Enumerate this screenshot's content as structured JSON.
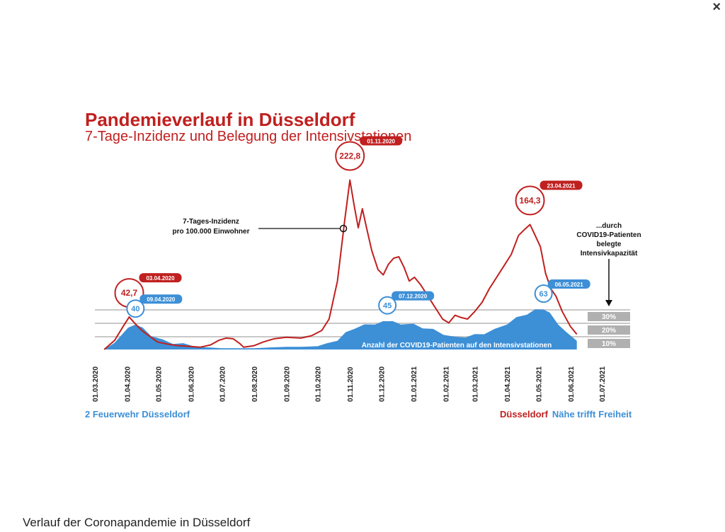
{
  "window": {
    "close_label": "×"
  },
  "caption": "Verlauf der Coronapandemie in Düsseldorf",
  "footer": {
    "left": "2 Feuerwehr Düsseldorf",
    "right_1": "Düsseldorf",
    "right_2": "Nähe trifft",
    "right_3": "Freiheit"
  },
  "colors": {
    "incidence": "#c0201f",
    "icu": "#3d8fd6",
    "band": "#b0b0b0"
  },
  "chart_data": {
    "type": "line",
    "title": "Pandemieverlauf in Düsseldorf",
    "subtitle": "7-Tage-Inzidenz und Belegung der Intensivstationen",
    "x_ticks": [
      "01.03.2020",
      "01.04.2020",
      "01.05.2020",
      "01.06.2020",
      "01.07.2020",
      "01.08.2020",
      "01.09.2020",
      "01.10.2020",
      "01.11.2020",
      "01.12.2020",
      "01.01.2021",
      "01.02.2021",
      "01.03.2021",
      "01.04.2021",
      "01.05.2021",
      "01.06.2021",
      "01.07.2021"
    ],
    "series": [
      {
        "name": "7-Tages-Inzidenz pro 100.000 Einwohner",
        "kind": "line",
        "points": [
          [
            "2020-03-10",
            0
          ],
          [
            "2020-03-20",
            12
          ],
          [
            "2020-03-28",
            30
          ],
          [
            "2020-04-03",
            42.7
          ],
          [
            "2020-04-08",
            35
          ],
          [
            "2020-04-15",
            25
          ],
          [
            "2020-04-22",
            18
          ],
          [
            "2020-04-30",
            10
          ],
          [
            "2020-05-10",
            7
          ],
          [
            "2020-05-20",
            5
          ],
          [
            "2020-06-01",
            4
          ],
          [
            "2020-06-10",
            3
          ],
          [
            "2020-06-20",
            6
          ],
          [
            "2020-06-28",
            12
          ],
          [
            "2020-07-05",
            15
          ],
          [
            "2020-07-12",
            14
          ],
          [
            "2020-07-18",
            8
          ],
          [
            "2020-07-22",
            3
          ],
          [
            "2020-08-01",
            5
          ],
          [
            "2020-08-10",
            10
          ],
          [
            "2020-08-20",
            14
          ],
          [
            "2020-09-01",
            16
          ],
          [
            "2020-09-15",
            15
          ],
          [
            "2020-09-25",
            18
          ],
          [
            "2020-10-05",
            25
          ],
          [
            "2020-10-12",
            40
          ],
          [
            "2020-10-20",
            90
          ],
          [
            "2020-10-27",
            170
          ],
          [
            "2020-11-01",
            222.8
          ],
          [
            "2020-11-05",
            190
          ],
          [
            "2020-11-09",
            160
          ],
          [
            "2020-11-13",
            185
          ],
          [
            "2020-11-17",
            160
          ],
          [
            "2020-11-22",
            130
          ],
          [
            "2020-11-28",
            105
          ],
          [
            "2020-12-03",
            98
          ],
          [
            "2020-12-08",
            112
          ],
          [
            "2020-12-13",
            120
          ],
          [
            "2020-12-18",
            122
          ],
          [
            "2020-12-23",
            108
          ],
          [
            "2020-12-28",
            90
          ],
          [
            "2021-01-02",
            95
          ],
          [
            "2021-01-08",
            85
          ],
          [
            "2021-01-15",
            70
          ],
          [
            "2021-01-22",
            55
          ],
          [
            "2021-01-29",
            40
          ],
          [
            "2021-02-04",
            35
          ],
          [
            "2021-02-10",
            45
          ],
          [
            "2021-02-16",
            42
          ],
          [
            "2021-02-22",
            40
          ],
          [
            "2021-03-01",
            50
          ],
          [
            "2021-03-08",
            62
          ],
          [
            "2021-03-15",
            80
          ],
          [
            "2021-03-22",
            95
          ],
          [
            "2021-03-29",
            110
          ],
          [
            "2021-04-05",
            125
          ],
          [
            "2021-04-12",
            150
          ],
          [
            "2021-04-18",
            158
          ],
          [
            "2021-04-23",
            164.3
          ],
          [
            "2021-04-28",
            150
          ],
          [
            "2021-05-03",
            135
          ],
          [
            "2021-05-08",
            100
          ],
          [
            "2021-05-13",
            80
          ],
          [
            "2021-05-18",
            70
          ],
          [
            "2021-05-24",
            50
          ],
          [
            "2021-06-01",
            30
          ],
          [
            "2021-06-07",
            20
          ]
        ]
      },
      {
        "name": "Anzahl der COVID19-Patienten auf den Intensivstationen",
        "kind": "area",
        "points": [
          [
            "2020-03-10",
            0
          ],
          [
            "2020-03-20",
            12
          ],
          [
            "2020-04-02",
            32
          ],
          [
            "2020-04-09",
            40
          ],
          [
            "2020-04-16",
            32
          ],
          [
            "2020-04-24",
            22
          ],
          [
            "2020-05-05",
            14
          ],
          [
            "2020-05-15",
            10
          ],
          [
            "2020-05-25",
            8
          ],
          [
            "2020-06-05",
            6
          ],
          [
            "2020-06-20",
            3
          ],
          [
            "2020-07-01",
            2
          ],
          [
            "2020-07-15",
            2
          ],
          [
            "2020-08-01",
            2
          ],
          [
            "2020-08-15",
            3
          ],
          [
            "2020-09-01",
            4
          ],
          [
            "2020-09-15",
            4
          ],
          [
            "2020-10-01",
            5
          ],
          [
            "2020-10-10",
            8
          ],
          [
            "2020-10-20",
            15
          ],
          [
            "2020-10-28",
            25
          ],
          [
            "2020-11-05",
            33
          ],
          [
            "2020-11-15",
            37
          ],
          [
            "2020-11-25",
            40
          ],
          [
            "2020-12-03",
            42
          ],
          [
            "2020-12-07",
            45
          ],
          [
            "2020-12-12",
            42
          ],
          [
            "2020-12-20",
            40
          ],
          [
            "2021-01-01",
            38
          ],
          [
            "2021-01-10",
            34
          ],
          [
            "2021-01-20",
            30
          ],
          [
            "2021-01-30",
            24
          ],
          [
            "2021-02-10",
            18
          ],
          [
            "2021-02-20",
            20
          ],
          [
            "2021-03-01",
            22
          ],
          [
            "2021-03-10",
            25
          ],
          [
            "2021-03-20",
            30
          ],
          [
            "2021-04-01",
            40
          ],
          [
            "2021-04-10",
            48
          ],
          [
            "2021-04-20",
            55
          ],
          [
            "2021-04-28",
            60
          ],
          [
            "2021-05-06",
            63
          ],
          [
            "2021-05-12",
            55
          ],
          [
            "2021-05-20",
            40
          ],
          [
            "2021-05-28",
            25
          ],
          [
            "2021-06-07",
            15
          ]
        ]
      }
    ],
    "capacity_bands": [
      "10%",
      "20%",
      "30%"
    ],
    "annotations": [
      {
        "series": 0,
        "date": "2020-04-03",
        "label": "03.04.2020",
        "value_label": "42,7"
      },
      {
        "series": 1,
        "date": "2020-04-09",
        "label": "09.04.2020",
        "value_label": "40"
      },
      {
        "series": 0,
        "date": "2020-11-01",
        "label": "01.11.2020",
        "value_label": "222,8"
      },
      {
        "series": 1,
        "date": "2020-12-07",
        "label": "07.12.2020",
        "value_label": "45"
      },
      {
        "series": 0,
        "date": "2021-04-23",
        "label": "23.04.2021",
        "value_label": "164,3"
      },
      {
        "series": 1,
        "date": "2021-05-06",
        "label": "06.05.2021",
        "value_label": "63"
      }
    ],
    "notes": {
      "incidence_line_1": "7-Tages-Inzidenz",
      "incidence_line_2": "pro 100.000 Einwohner",
      "capacity_1": "...durch",
      "capacity_2": "COVID19-Patienten",
      "capacity_3": "belegte",
      "capacity_4": "Intensivkapazität",
      "icu_label": "Anzahl der COVID19-Patienten auf den Intensivstationen"
    }
  }
}
